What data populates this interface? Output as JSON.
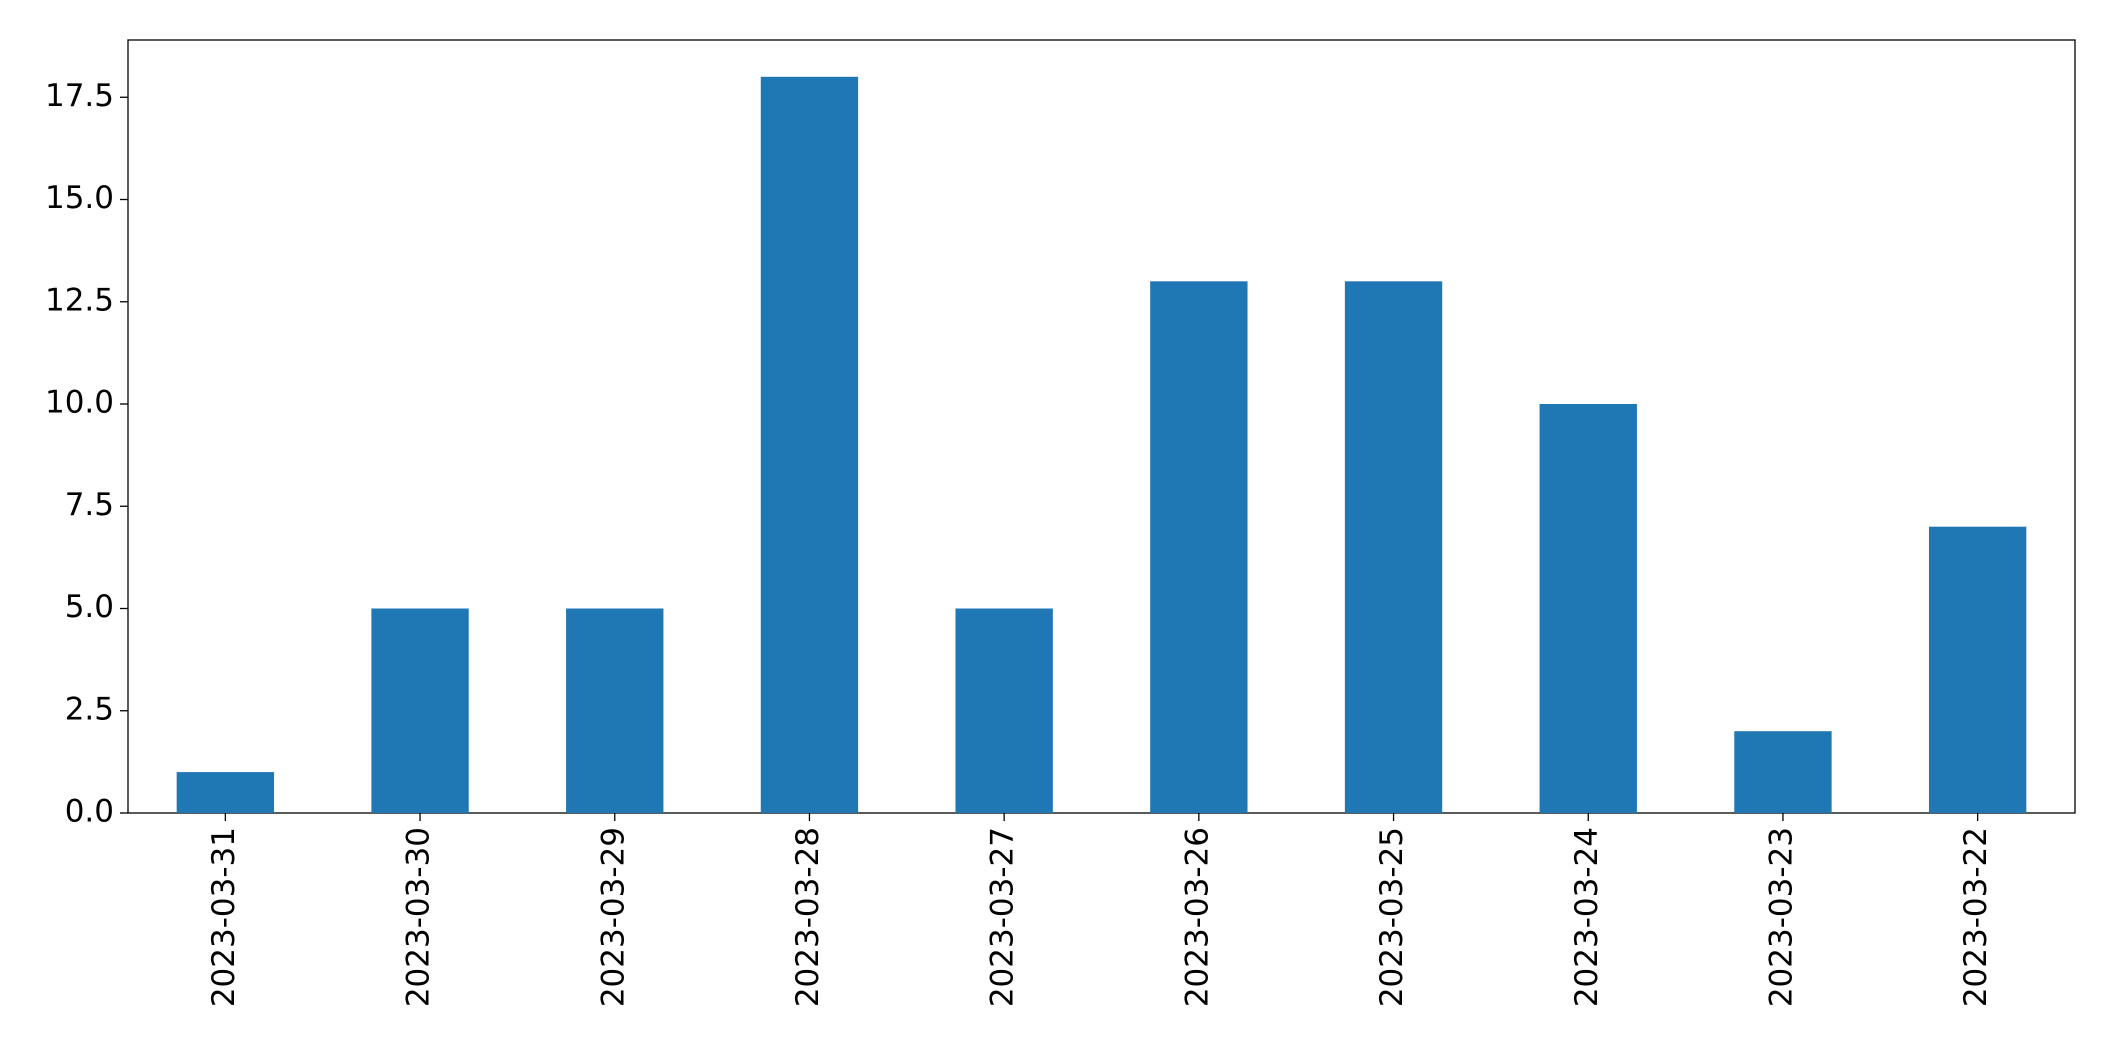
{
  "chart_data": {
    "type": "bar",
    "categories": [
      "2023-03-31",
      "2023-03-30",
      "2023-03-29",
      "2023-03-28",
      "2023-03-27",
      "2023-03-26",
      "2023-03-25",
      "2023-03-24",
      "2023-03-23",
      "2023-03-22"
    ],
    "values": [
      1,
      5,
      5,
      18,
      5,
      13,
      13,
      10,
      2,
      7
    ],
    "color": "#1f77b4",
    "ylim": [
      0,
      18.9
    ],
    "yticks": [
      {
        "value": 0,
        "label": "0.0"
      },
      {
        "value": 2.5,
        "label": "2.5"
      },
      {
        "value": 5,
        "label": "5.0"
      },
      {
        "value": 7.5,
        "label": "7.5"
      },
      {
        "value": 10,
        "label": "10.0"
      },
      {
        "value": 12.5,
        "label": "12.5"
      },
      {
        "value": 15,
        "label": "15.0"
      },
      {
        "value": 17.5,
        "label": "17.5"
      }
    ],
    "grid": false
  }
}
